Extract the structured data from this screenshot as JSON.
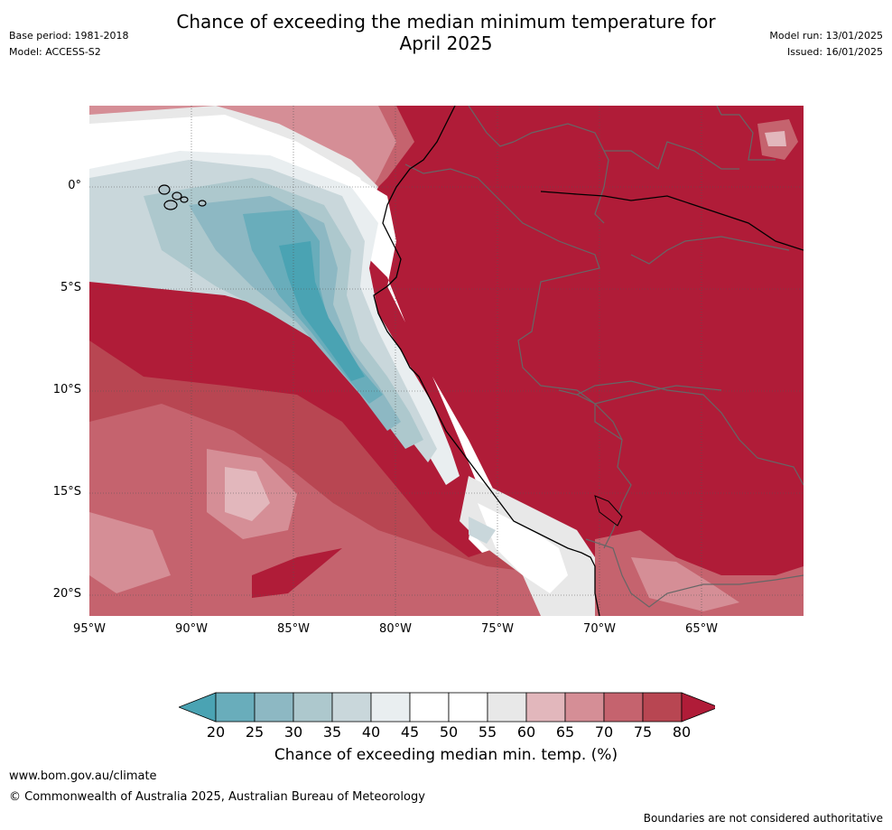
{
  "header": {
    "title_line1": "Chance of exceeding the median minimum temperature for",
    "title_line2": "April 2025",
    "base_period": "Base period: 1981-2018",
    "model": "Model: ACCESS-S2",
    "model_run": "Model run: 13/01/2025",
    "issued": "Issued: 16/01/2025"
  },
  "map": {
    "lat_labels": [
      "0°",
      "5°S",
      "10°S",
      "15°S",
      "20°S"
    ],
    "lon_labels": [
      "95°W",
      "90°W",
      "85°W",
      "80°W",
      "75°W",
      "70°W",
      "65°W"
    ],
    "extent": {
      "lon_min": -95,
      "lon_max": -60,
      "lat_min": -21,
      "lat_max": 4
    }
  },
  "colorbar": {
    "ticks": [
      "20",
      "25",
      "30",
      "35",
      "40",
      "45",
      "50",
      "55",
      "60",
      "65",
      "70",
      "75",
      "80"
    ],
    "colors": [
      "#4aa3b3",
      "#69adbb",
      "#8db8c3",
      "#adc8cd",
      "#c9d7db",
      "#e9eef0",
      "#ffffff",
      "#ffffff",
      "#e8e8e8",
      "#e2b7bc",
      "#d58e96",
      "#c5636e",
      "#b84652",
      "#b01c38"
    ],
    "label": "Chance of exceeding median min. temp. (%)"
  },
  "footer": {
    "url": "www.bom.gov.au/climate",
    "copyright": "© Commonwealth of Australia 2025, Australian Bureau of Meteorology",
    "note": "Boundaries are not considered authoritative"
  }
}
